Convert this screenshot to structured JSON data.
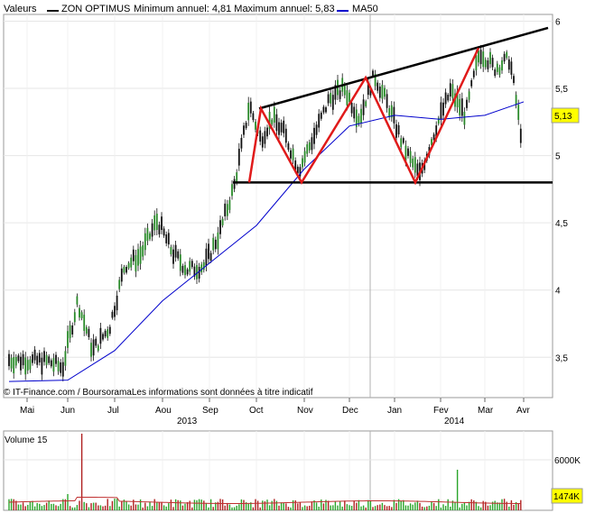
{
  "legend": {
    "valeurs": "Valeurs",
    "series": "ZON OPTIMUS",
    "minmax": "Minimum annuel: 4,81 Maximum annuel: 5,83",
    "ma": "MA50"
  },
  "source": "© IT-Finance.com / BoursoramaLes informations sont données à titre indicatif",
  "volume_title": "Volume 15",
  "colors": {
    "price": "#111111",
    "ma50": "#0000cc",
    "pattern": "#e01a1a",
    "trend": "#000000",
    "volume_up": "#2aa52a",
    "volume_down": "#b02020",
    "volume_ma": "#c03030",
    "badge": "#ffff00"
  },
  "chart_data": [
    {
      "type": "line",
      "title": "ZON OPTIMUS",
      "y_ticks": [
        "3,5",
        "4",
        "4,5",
        "5",
        "5,5",
        "6"
      ],
      "ylim": [
        3.2,
        6.05
      ],
      "x_ticks": [
        "Mai",
        "Jun",
        "Jul",
        "Aou",
        "Sep",
        "Oct",
        "Nov",
        "Dec",
        "Jan",
        "Fev",
        "Mar",
        "Avr"
      ],
      "x_years": [
        "2013",
        "2014"
      ],
      "last_value": "5,13",
      "series": [
        {
          "name": "ZON OPTIMUS",
          "x": [
            "Mai",
            "Mai",
            "Jun",
            "Jun",
            "Jun",
            "Jul",
            "Jul",
            "Jul",
            "Aou",
            "Aou",
            "Aou",
            "Sep",
            "Sep",
            "Sep",
            "Oct",
            "Oct",
            "Oct",
            "Oct",
            "Nov",
            "Nov",
            "Nov",
            "Dec",
            "Dec",
            "Dec",
            "Jan",
            "Jan",
            "Jan",
            "Fev",
            "Fev",
            "Fev",
            "Mar",
            "Mar",
            "Mar",
            "Avr"
          ],
          "values": [
            3.48,
            3.47,
            3.42,
            3.92,
            3.55,
            3.72,
            4.18,
            4.25,
            4.52,
            4.28,
            4.15,
            4.18,
            4.42,
            4.78,
            5.38,
            5.12,
            5.28,
            5.18,
            4.9,
            5.15,
            5.42,
            5.5,
            5.28,
            5.6,
            5.35,
            5.05,
            4.85,
            5.2,
            5.48,
            5.3,
            5.78,
            5.65,
            5.72,
            5.13
          ]
        },
        {
          "name": "MA50",
          "x": [
            "Mai",
            "Jun",
            "Jul",
            "Aou",
            "Sep",
            "Oct",
            "Nov",
            "Dec",
            "Jan",
            "Fev",
            "Mar",
            "Avr"
          ],
          "values": [
            3.32,
            3.33,
            3.55,
            3.92,
            4.2,
            4.48,
            4.9,
            5.22,
            5.3,
            5.27,
            5.3,
            5.4
          ]
        }
      ],
      "annotations": {
        "support_level": 4.8,
        "resistance_trend": [
          [
            "Oct",
            5.35
          ],
          [
            "Avr",
            5.95
          ]
        ]
      }
    },
    {
      "type": "bar",
      "title": "Volume 15",
      "y_ticks": [
        "6000K"
      ],
      "last_value": "1474K"
    }
  ]
}
